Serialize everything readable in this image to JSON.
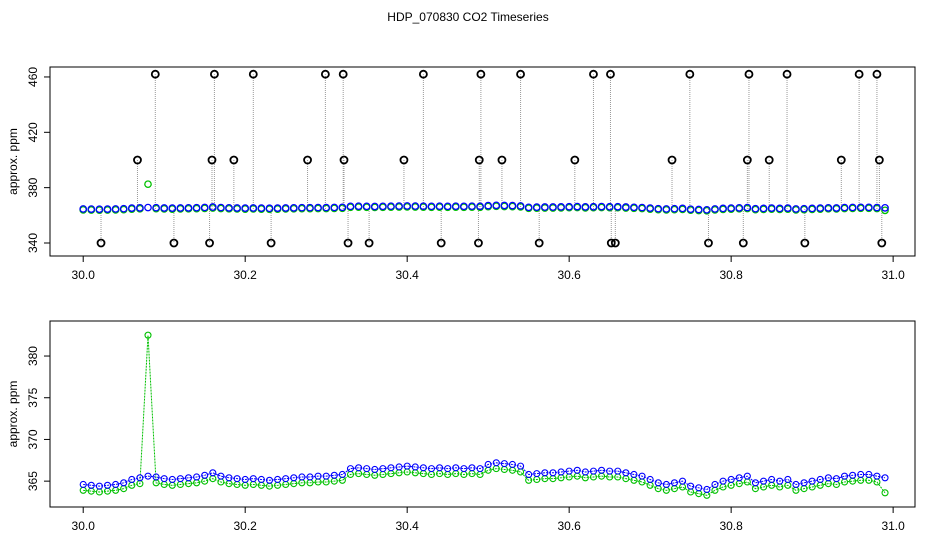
{
  "title": "HDP_070830  CO2 Timeseries",
  "chart_data": [
    {
      "type": "scatter",
      "ylabel": "approx. ppm",
      "xlim": [
        29.959,
        31.027
      ],
      "ylim": [
        330.6,
        467.2
      ],
      "xticks": [
        {
          "value": 30,
          "label": "30.0"
        },
        {
          "value": 30.2,
          "label": "30.2"
        },
        {
          "value": 30.4,
          "label": "30.4"
        },
        {
          "value": 30.6,
          "label": "30.6"
        },
        {
          "value": 30.8,
          "label": "30.8"
        },
        {
          "value": 31,
          "label": "31.0"
        }
      ],
      "yticks": [
        340,
        380,
        420,
        460
      ],
      "x": [
        30,
        30.01,
        30.02,
        30.03,
        30.04,
        30.05,
        30.06,
        30.07,
        30.08,
        30.09,
        30.1,
        30.11,
        30.12,
        30.13,
        30.14,
        30.15,
        30.16,
        30.17,
        30.18,
        30.19,
        30.2,
        30.21,
        30.22,
        30.23,
        30.24,
        30.25,
        30.26,
        30.27,
        30.28,
        30.29,
        30.3,
        30.31,
        30.32,
        30.33,
        30.34,
        30.35,
        30.36,
        30.37,
        30.38,
        30.39,
        30.4,
        30.41,
        30.42,
        30.43,
        30.44,
        30.45,
        30.46,
        30.47,
        30.48,
        30.49,
        30.5,
        30.51,
        30.52,
        30.53,
        30.54,
        30.55,
        30.56,
        30.57,
        30.58,
        30.59,
        30.6,
        30.61,
        30.62,
        30.63,
        30.64,
        30.65,
        30.66,
        30.67,
        30.68,
        30.69,
        30.7,
        30.71,
        30.72,
        30.73,
        30.74,
        30.75,
        30.76,
        30.77,
        30.78,
        30.79,
        30.8,
        30.81,
        30.82,
        30.83,
        30.84,
        30.85,
        30.86,
        30.87,
        30.88,
        30.89,
        30.9,
        30.91,
        30.92,
        30.93,
        30.94,
        30.95,
        30.96,
        30.97,
        30.98,
        30.99
      ],
      "series": [
        {
          "color": "#00c000",
          "values": [
            363.9,
            363.8,
            363.7,
            363.8,
            363.9,
            364.1,
            364.5,
            364.7,
            382.5,
            364.8,
            364.6,
            364.5,
            364.6,
            364.7,
            364.8,
            365.0,
            365.3,
            364.9,
            364.7,
            364.6,
            364.5,
            364.6,
            364.5,
            364.4,
            364.5,
            364.6,
            364.7,
            364.8,
            364.8,
            364.9,
            364.9,
            365.0,
            365.1,
            365.8,
            365.9,
            365.8,
            365.7,
            365.8,
            365.9,
            366.0,
            366.1,
            366.0,
            365.9,
            365.8,
            365.9,
            365.8,
            365.9,
            365.8,
            365.9,
            365.8,
            366.3,
            366.5,
            366.4,
            366.3,
            366.1,
            365.1,
            365.2,
            365.3,
            365.3,
            365.4,
            365.5,
            365.6,
            365.4,
            365.5,
            365.6,
            365.5,
            365.5,
            365.3,
            365.1,
            364.9,
            364.5,
            364.1,
            363.9,
            364.1,
            364.3,
            363.7,
            363.5,
            363.3,
            363.9,
            364.3,
            364.5,
            364.7,
            364.9,
            364.1,
            364.3,
            364.5,
            364.3,
            364.5,
            363.9,
            364.1,
            364.3,
            364.5,
            364.7,
            364.6,
            364.9,
            365.0,
            365.1,
            365.1,
            364.9,
            363.6
          ]
        },
        {
          "color": "#0000ff",
          "values": [
            364.6,
            364.5,
            364.4,
            364.5,
            364.6,
            364.8,
            365.2,
            365.4,
            365.6,
            365.5,
            365.3,
            365.2,
            365.3,
            365.4,
            365.5,
            365.7,
            366.0,
            365.6,
            365.4,
            365.3,
            365.2,
            365.3,
            365.2,
            365.1,
            365.2,
            365.3,
            365.4,
            365.5,
            365.5,
            365.6,
            365.6,
            365.7,
            365.8,
            366.5,
            366.6,
            366.5,
            366.4,
            366.5,
            366.6,
            366.7,
            366.8,
            366.7,
            366.6,
            366.5,
            366.6,
            366.5,
            366.6,
            366.5,
            366.6,
            366.5,
            367.0,
            367.2,
            367.1,
            367.0,
            366.8,
            365.8,
            365.9,
            366.0,
            366.0,
            366.1,
            366.2,
            366.3,
            366.1,
            366.2,
            366.3,
            366.2,
            366.2,
            366.0,
            365.8,
            365.6,
            365.2,
            364.8,
            364.6,
            364.8,
            365.0,
            364.4,
            364.2,
            364.0,
            364.6,
            365.0,
            365.2,
            365.4,
            365.6,
            364.8,
            365.0,
            365.2,
            365.0,
            365.2,
            364.6,
            364.8,
            365.0,
            365.2,
            365.4,
            365.3,
            365.6,
            365.7,
            365.8,
            365.8,
            365.6,
            365.4
          ]
        }
      ],
      "outliers": {
        "color": "#000000",
        "x": [
          30.022,
          30.067,
          30.089,
          30.112,
          30.156,
          30.159,
          30.162,
          30.186,
          30.21,
          30.232,
          30.277,
          30.299,
          30.321,
          30.322,
          30.327,
          30.353,
          30.396,
          30.42,
          30.442,
          30.488,
          30.489,
          30.491,
          30.517,
          30.54,
          30.563,
          30.607,
          30.63,
          30.651,
          30.652,
          30.657,
          30.727,
          30.749,
          30.772,
          30.815,
          30.82,
          30.822,
          30.847,
          30.869,
          30.891,
          30.936,
          30.958,
          30.98,
          30.983,
          30.986
        ],
        "values": [
          340,
          400,
          462,
          340,
          340,
          400,
          462,
          400,
          462,
          340,
          400,
          462,
          462,
          400,
          340,
          340,
          400,
          462,
          340,
          340,
          400,
          462,
          400,
          462,
          340,
          400,
          462,
          462,
          340,
          340,
          400,
          462,
          340,
          340,
          400,
          462,
          400,
          462,
          340,
          400,
          462,
          462,
          400,
          340
        ]
      }
    },
    {
      "type": "line",
      "ylabel": "approx. ppm",
      "xlim": [
        29.959,
        31.027
      ],
      "ylim": [
        361.9,
        384.2
      ],
      "xticks": [
        {
          "value": 30,
          "label": "30.0"
        },
        {
          "value": 30.2,
          "label": "30.2"
        },
        {
          "value": 30.4,
          "label": "30.4"
        },
        {
          "value": 30.6,
          "label": "30.6"
        },
        {
          "value": 30.8,
          "label": "30.8"
        },
        {
          "value": 31,
          "label": "31.0"
        }
      ],
      "yticks": [
        365,
        370,
        375,
        380
      ],
      "x": [
        30,
        30.01,
        30.02,
        30.03,
        30.04,
        30.05,
        30.06,
        30.07,
        30.08,
        30.09,
        30.1,
        30.11,
        30.12,
        30.13,
        30.14,
        30.15,
        30.16,
        30.17,
        30.18,
        30.19,
        30.2,
        30.21,
        30.22,
        30.23,
        30.24,
        30.25,
        30.26,
        30.27,
        30.28,
        30.29,
        30.3,
        30.31,
        30.32,
        30.33,
        30.34,
        30.35,
        30.36,
        30.37,
        30.38,
        30.39,
        30.4,
        30.41,
        30.42,
        30.43,
        30.44,
        30.45,
        30.46,
        30.47,
        30.48,
        30.49,
        30.5,
        30.51,
        30.52,
        30.53,
        30.54,
        30.55,
        30.56,
        30.57,
        30.58,
        30.59,
        30.6,
        30.61,
        30.62,
        30.63,
        30.64,
        30.65,
        30.66,
        30.67,
        30.68,
        30.69,
        30.7,
        30.71,
        30.72,
        30.73,
        30.74,
        30.75,
        30.76,
        30.77,
        30.78,
        30.79,
        30.8,
        30.81,
        30.82,
        30.83,
        30.84,
        30.85,
        30.86,
        30.87,
        30.88,
        30.89,
        30.9,
        30.91,
        30.92,
        30.93,
        30.94,
        30.95,
        30.96,
        30.97,
        30.98,
        30.99
      ],
      "series": [
        {
          "color": "#00c000",
          "values": [
            363.9,
            363.8,
            363.7,
            363.8,
            363.9,
            364.1,
            364.5,
            364.7,
            382.5,
            364.8,
            364.6,
            364.5,
            364.6,
            364.7,
            364.8,
            365.0,
            365.3,
            364.9,
            364.7,
            364.6,
            364.5,
            364.6,
            364.5,
            364.4,
            364.5,
            364.6,
            364.7,
            364.8,
            364.8,
            364.9,
            364.9,
            365.0,
            365.1,
            365.8,
            365.9,
            365.8,
            365.7,
            365.8,
            365.9,
            366.0,
            366.1,
            366.0,
            365.9,
            365.8,
            365.9,
            365.8,
            365.9,
            365.8,
            365.9,
            365.8,
            366.3,
            366.5,
            366.4,
            366.3,
            366.1,
            365.1,
            365.2,
            365.3,
            365.3,
            365.4,
            365.5,
            365.6,
            365.4,
            365.5,
            365.6,
            365.5,
            365.5,
            365.3,
            365.1,
            364.9,
            364.5,
            364.1,
            363.9,
            364.1,
            364.3,
            363.7,
            363.5,
            363.3,
            363.9,
            364.3,
            364.5,
            364.7,
            364.9,
            364.1,
            364.3,
            364.5,
            364.3,
            364.5,
            363.9,
            364.1,
            364.3,
            364.5,
            364.7,
            364.6,
            364.9,
            365.0,
            365.1,
            365.1,
            364.9,
            363.6
          ]
        },
        {
          "color": "#0000ff",
          "values": [
            364.6,
            364.5,
            364.4,
            364.5,
            364.6,
            364.8,
            365.2,
            365.4,
            365.6,
            365.5,
            365.3,
            365.2,
            365.3,
            365.4,
            365.5,
            365.7,
            366.0,
            365.6,
            365.4,
            365.3,
            365.2,
            365.3,
            365.2,
            365.1,
            365.2,
            365.3,
            365.4,
            365.5,
            365.5,
            365.6,
            365.6,
            365.7,
            365.8,
            366.5,
            366.6,
            366.5,
            366.4,
            366.5,
            366.6,
            366.7,
            366.8,
            366.7,
            366.6,
            366.5,
            366.6,
            366.5,
            366.6,
            366.5,
            366.6,
            366.5,
            367.0,
            367.2,
            367.1,
            367.0,
            366.8,
            365.8,
            365.9,
            366.0,
            366.0,
            366.1,
            366.2,
            366.3,
            366.1,
            366.2,
            366.3,
            366.2,
            366.2,
            366.0,
            365.8,
            365.6,
            365.2,
            364.8,
            364.6,
            364.8,
            365.0,
            364.4,
            364.2,
            364.0,
            364.6,
            365.0,
            365.2,
            365.4,
            365.6,
            364.8,
            365.0,
            365.2,
            365.0,
            365.2,
            364.6,
            364.8,
            365.0,
            365.2,
            365.4,
            365.3,
            365.6,
            365.7,
            365.8,
            365.8,
            365.6,
            365.4
          ]
        }
      ]
    }
  ]
}
